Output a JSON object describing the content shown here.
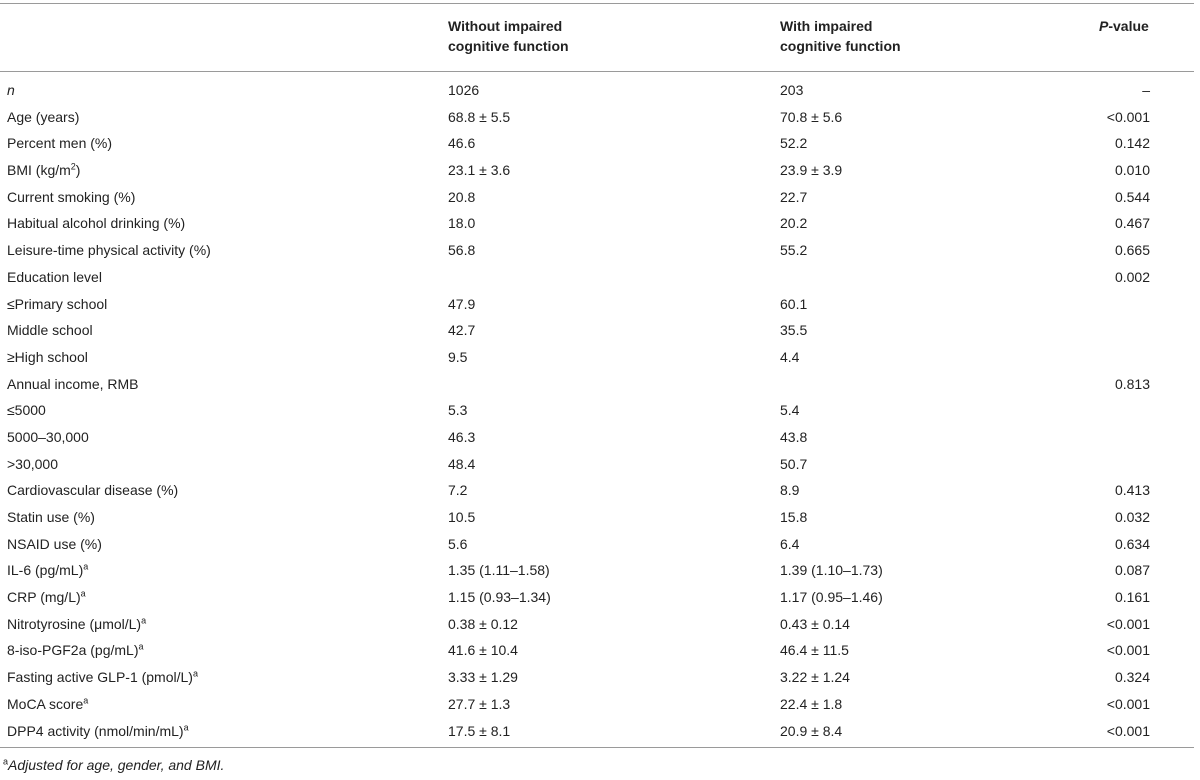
{
  "table": {
    "header": {
      "col1": "",
      "col2_line1": "Without impaired",
      "col2_line2": "cognitive function",
      "col3_line1": "With impaired",
      "col3_line2": "cognitive function",
      "col4_p": "P",
      "col4_rest": "-value"
    },
    "rows": [
      {
        "label": "n",
        "v1": "1026",
        "v2": "203",
        "p": "–",
        "sup": ""
      },
      {
        "label": "Age (years)",
        "v1": "68.8 ± 5.5",
        "v2": "70.8 ± 5.6",
        "p": "<0.001",
        "sup": ""
      },
      {
        "label": "Percent men (%)",
        "v1": "46.6",
        "v2": "52.2",
        "p": "0.142",
        "sup": ""
      },
      {
        "label": "BMI (kg/m",
        "label_sup": "2",
        "label_tail": ")",
        "v1": "23.1 ± 3.6",
        "v2": "23.9 ± 3.9",
        "p": "0.010",
        "sup": ""
      },
      {
        "label": "Current smoking (%)",
        "v1": "20.8",
        "v2": "22.7",
        "p": "0.544",
        "sup": ""
      },
      {
        "label": "Habitual alcohol drinking (%)",
        "v1": "18.0",
        "v2": "20.2",
        "p": "0.467",
        "sup": ""
      },
      {
        "label": "Leisure-time physical activity (%)",
        "v1": "56.8",
        "v2": "55.2",
        "p": "0.665",
        "sup": ""
      },
      {
        "label": "Education level",
        "v1": "",
        "v2": "",
        "p": "0.002",
        "sup": ""
      },
      {
        "label": "≤Primary school",
        "v1": "47.9",
        "v2": "60.1",
        "p": "",
        "sup": ""
      },
      {
        "label": "Middle school",
        "v1": "42.7",
        "v2": "35.5",
        "p": "",
        "sup": ""
      },
      {
        "label": "≥High school",
        "v1": "9.5",
        "v2": "4.4",
        "p": "",
        "sup": ""
      },
      {
        "label": "Annual income, RMB",
        "v1": "",
        "v2": "",
        "p": "0.813",
        "sup": ""
      },
      {
        "label": "≤5000",
        "v1": "5.3",
        "v2": "5.4",
        "p": "",
        "sup": ""
      },
      {
        "label": "5000–30,000",
        "v1": "46.3",
        "v2": "43.8",
        "p": "",
        "sup": ""
      },
      {
        "label": ">30,000",
        "v1": "48.4",
        "v2": "50.7",
        "p": "",
        "sup": ""
      },
      {
        "label": "Cardiovascular disease (%)",
        "v1": "7.2",
        "v2": "8.9",
        "p": "0.413",
        "sup": ""
      },
      {
        "label": "Statin use (%)",
        "v1": "10.5",
        "v2": "15.8",
        "p": "0.032",
        "sup": ""
      },
      {
        "label": "NSAID use (%)",
        "v1": "5.6",
        "v2": "6.4",
        "p": "0.634",
        "sup": ""
      },
      {
        "label": "IL-6 (pg/mL)",
        "v1": "1.35 (1.11–1.58)",
        "v2": "1.39 (1.10–1.73)",
        "p": "0.087",
        "sup": "a"
      },
      {
        "label": "CRP (mg/L)",
        "v1": "1.15 (0.93–1.34)",
        "v2": "1.17 (0.95–1.46)",
        "p": "0.161",
        "sup": "a"
      },
      {
        "label": "Nitrotyrosine (μmol/L)",
        "v1": "0.38 ± 0.12",
        "v2": "0.43 ± 0.14",
        "p": "<0.001",
        "sup": "a"
      },
      {
        "label": "8-iso-PGF2a (pg/mL)",
        "v1": "41.6 ± 10.4",
        "v2": "46.4 ± 11.5",
        "p": "<0.001",
        "sup": "a"
      },
      {
        "label": "Fasting active GLP-1 (pmol/L)",
        "v1": "3.33 ± 1.29",
        "v2": "3.22 ± 1.24",
        "p": "0.324",
        "sup": "a"
      },
      {
        "label": "MoCA score",
        "v1": "27.7 ± 1.3",
        "v2": "22.4 ± 1.8",
        "p": "<0.001",
        "sup": "a"
      },
      {
        "label": "DPP4 activity (nmol/min/mL)",
        "v1": "17.5 ± 8.1",
        "v2": "20.9 ± 8.4",
        "p": "<0.001",
        "sup": "a"
      }
    ],
    "footnote": {
      "mark": "a",
      "text": "Adjusted for age, gender, and BMI."
    }
  }
}
